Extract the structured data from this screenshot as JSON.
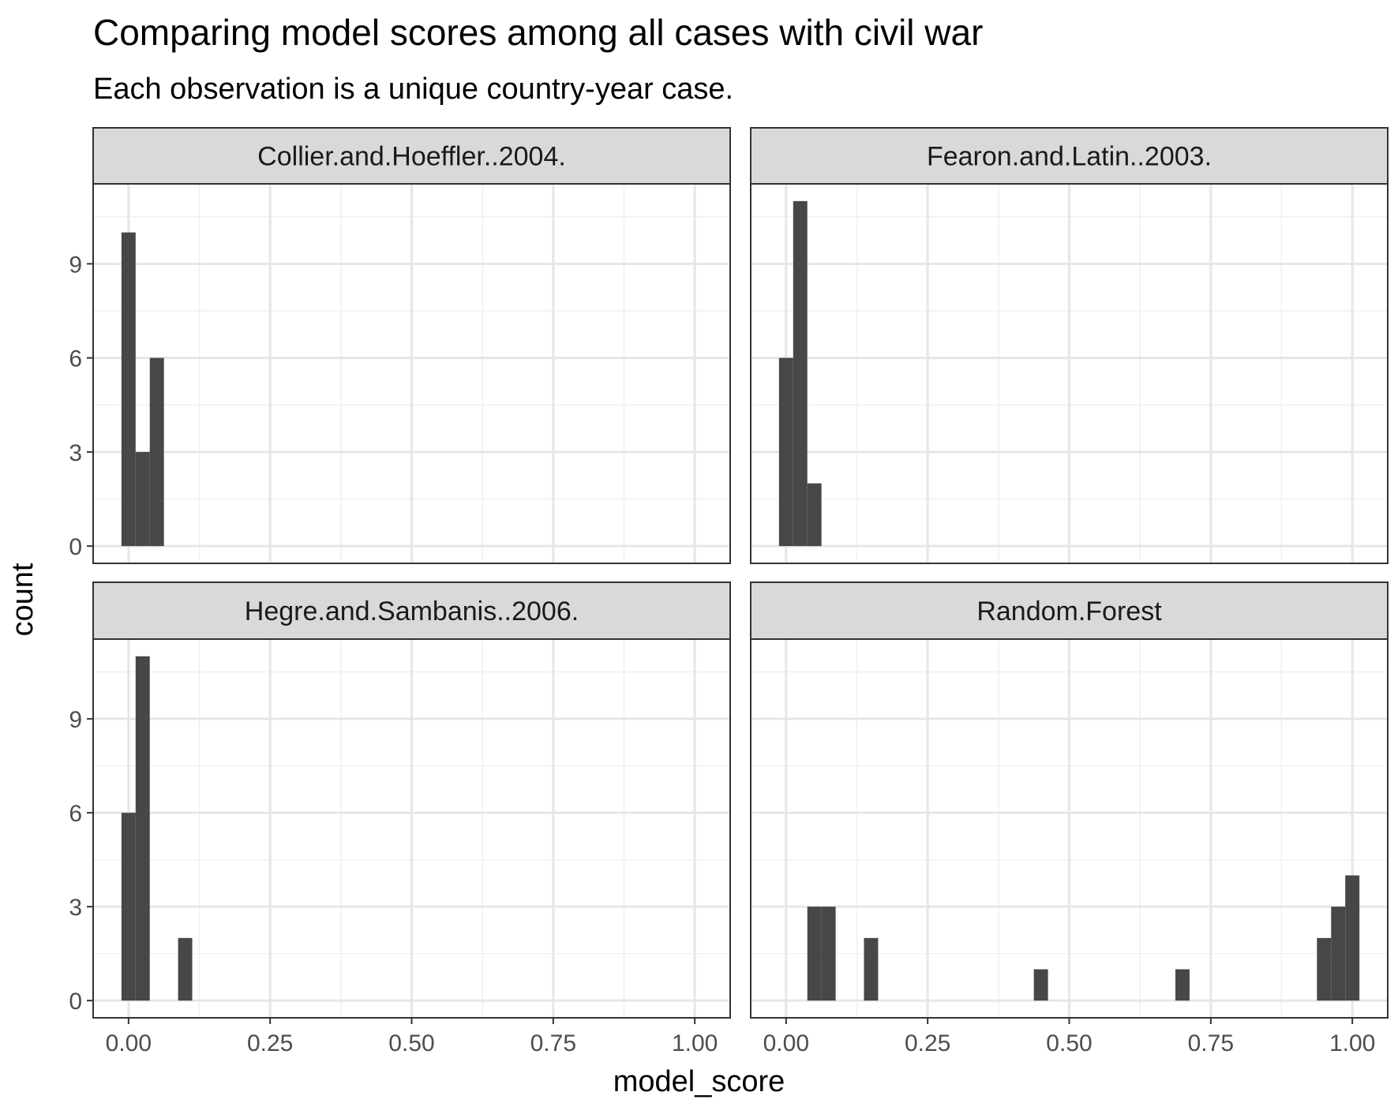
{
  "chart_data": {
    "type": "bar",
    "title": "Comparing model scores among all cases with civil war",
    "subtitle": "Each observation is a unique country-year case.",
    "xlabel": "model_score",
    "ylabel": "count",
    "xlim": [
      -0.0625,
      1.0625
    ],
    "ylim": [
      -0.55,
      11.55
    ],
    "x_ticks": [
      0,
      0.25,
      0.5,
      0.75,
      1
    ],
    "x_tick_labels": [
      "0.00",
      "0.25",
      "0.50",
      "0.75",
      "1.00"
    ],
    "y_ticks": [
      0,
      3,
      6,
      9
    ],
    "y_tick_labels": [
      "0",
      "3",
      "6",
      "9"
    ],
    "bin_width": 0.025,
    "grid": true,
    "facets": [
      {
        "name": "Collier.and.Hoeffler..2004.",
        "x": [
          0.0,
          0.025,
          0.05
        ],
        "values": [
          10,
          3,
          6
        ]
      },
      {
        "name": "Fearon.and.Latin..2003.",
        "x": [
          0.0,
          0.025,
          0.05
        ],
        "values": [
          6,
          11,
          2
        ]
      },
      {
        "name": "Hegre.and.Sambanis..2006.",
        "x": [
          0.0,
          0.025,
          0.1
        ],
        "values": [
          6,
          11,
          2
        ]
      },
      {
        "name": "Random.Forest",
        "x": [
          0.05,
          0.075,
          0.15,
          0.45,
          0.7,
          0.95,
          0.975,
          1.0
        ],
        "values": [
          3,
          3,
          2,
          1,
          1,
          2,
          3,
          4
        ]
      }
    ]
  }
}
